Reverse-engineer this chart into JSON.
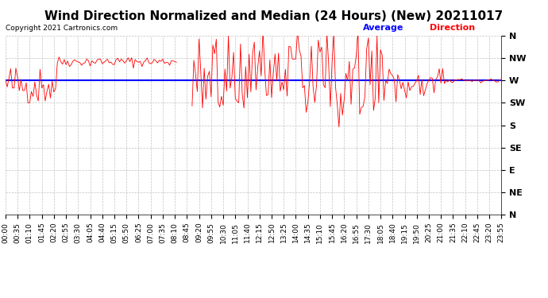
{
  "title": "Wind Direction Normalized and Median (24 Hours) (New) 20211017",
  "copyright": "Copyright 2021 Cartronics.com",
  "legend_blue": "Average",
  "legend_red": "Direction",
  "y_labels": [
    "N",
    "NW",
    "W",
    "SW",
    "S",
    "SE",
    "E",
    "NE",
    "N"
  ],
  "y_values": [
    360,
    315,
    270,
    225,
    180,
    135,
    90,
    45,
    0
  ],
  "y_min": 0,
  "y_max": 360,
  "avg_direction": 270,
  "line_color_red": "#ff0000",
  "line_color_blue": "#0000ff",
  "background_color": "#ffffff",
  "grid_color": "#bbbbbb",
  "title_fontsize": 11,
  "tick_fontsize": 6.5,
  "num_points": 288,
  "minutes_per_point": 5,
  "tick_every_minutes": 35
}
